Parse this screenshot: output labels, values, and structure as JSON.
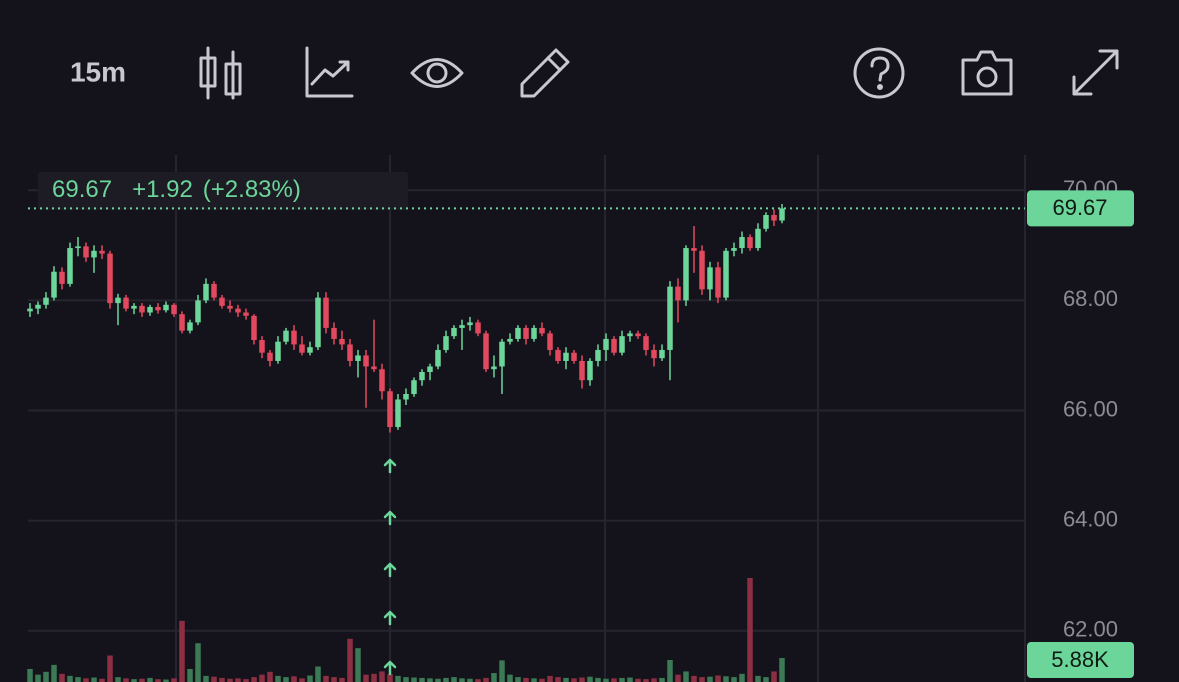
{
  "toolbar": {
    "interval": "15m"
  },
  "chart_data": {
    "type": "candlestick",
    "change": "+1.92",
    "change_pct": "(+2.83%)",
    "ylim": [
      61.07,
      70.64
    ],
    "yticks": [
      {
        "value": 62,
        "label": "62.00"
      },
      {
        "value": 64,
        "label": "64.00"
      },
      {
        "value": 66,
        "label": "66.00"
      },
      {
        "value": 68,
        "label": "68.00"
      },
      {
        "value": 70,
        "label": "70.00"
      }
    ],
    "grid": true,
    "up_color": "#6cd69a",
    "down_color": "#e2495f",
    "up_volume_color": "#3b7a55",
    "down_volume_color": "#8c2f42",
    "ohlc": [
      [
        67.8,
        67.95,
        67.7,
        67.85
      ],
      [
        67.85,
        67.98,
        67.75,
        67.92
      ],
      [
        67.92,
        68.15,
        67.85,
        68.05
      ],
      [
        68.05,
        68.62,
        68.0,
        68.52
      ],
      [
        68.52,
        68.6,
        68.2,
        68.3
      ],
      [
        68.3,
        69.05,
        68.25,
        68.95
      ],
      [
        68.95,
        69.15,
        68.8,
        68.98
      ],
      [
        68.98,
        69.05,
        68.7,
        68.78
      ],
      [
        68.78,
        69.0,
        68.5,
        68.9
      ],
      [
        68.9,
        69.0,
        68.75,
        68.85
      ],
      [
        68.85,
        68.9,
        67.85,
        67.95
      ],
      [
        67.95,
        68.12,
        67.55,
        68.05
      ],
      [
        68.05,
        68.1,
        67.8,
        67.85
      ],
      [
        67.85,
        67.95,
        67.75,
        67.9
      ],
      [
        67.9,
        67.95,
        67.7,
        67.78
      ],
      [
        67.78,
        67.92,
        67.72,
        67.88
      ],
      [
        67.88,
        67.95,
        67.76,
        67.82
      ],
      [
        67.82,
        67.98,
        67.78,
        67.92
      ],
      [
        67.92,
        67.95,
        67.7,
        67.75
      ],
      [
        67.75,
        67.8,
        67.4,
        67.45
      ],
      [
        67.45,
        67.65,
        67.4,
        67.6
      ],
      [
        67.6,
        68.1,
        67.55,
        68.0
      ],
      [
        68.0,
        68.4,
        67.95,
        68.3
      ],
      [
        68.3,
        68.35,
        68.0,
        68.05
      ],
      [
        68.05,
        68.1,
        67.85,
        67.9
      ],
      [
        67.9,
        68.0,
        67.78,
        67.85
      ],
      [
        67.85,
        67.92,
        67.7,
        67.78
      ],
      [
        67.78,
        67.85,
        67.65,
        67.72
      ],
      [
        67.72,
        67.75,
        67.2,
        67.28
      ],
      [
        67.28,
        67.35,
        66.95,
        67.05
      ],
      [
        67.05,
        67.1,
        66.8,
        66.9
      ],
      [
        66.9,
        67.35,
        66.85,
        67.25
      ],
      [
        67.25,
        67.5,
        67.2,
        67.45
      ],
      [
        67.45,
        67.55,
        67.1,
        67.2
      ],
      [
        67.2,
        67.35,
        67.0,
        67.05
      ],
      [
        67.05,
        67.25,
        67.0,
        67.15
      ],
      [
        67.15,
        68.15,
        67.1,
        68.05
      ],
      [
        68.05,
        68.15,
        67.4,
        67.5
      ],
      [
        67.5,
        67.6,
        67.2,
        67.3
      ],
      [
        67.3,
        67.45,
        67.1,
        67.2
      ],
      [
        67.2,
        67.3,
        66.8,
        66.9
      ],
      [
        66.9,
        67.1,
        66.6,
        67.0
      ],
      [
        67.0,
        67.1,
        66.05,
        66.8
      ],
      [
        66.8,
        67.65,
        66.7,
        66.75
      ],
      [
        66.75,
        66.85,
        66.2,
        66.35
      ],
      [
        66.35,
        66.4,
        65.6,
        65.7
      ],
      [
        65.7,
        66.3,
        65.65,
        66.2
      ],
      [
        66.2,
        66.4,
        66.1,
        66.3
      ],
      [
        66.3,
        66.6,
        66.25,
        66.55
      ],
      [
        66.55,
        66.75,
        66.45,
        66.7
      ],
      [
        66.7,
        66.85,
        66.55,
        66.8
      ],
      [
        66.8,
        67.2,
        66.75,
        67.1
      ],
      [
        67.1,
        67.45,
        67.05,
        67.35
      ],
      [
        67.35,
        67.55,
        67.3,
        67.5
      ],
      [
        67.5,
        67.65,
        67.1,
        67.55
      ],
      [
        67.55,
        67.7,
        67.45,
        67.6
      ],
      [
        67.6,
        67.65,
        67.35,
        67.4
      ],
      [
        67.4,
        67.45,
        66.7,
        66.75
      ],
      [
        66.75,
        67.0,
        66.6,
        66.8
      ],
      [
        66.8,
        67.3,
        66.3,
        67.25
      ],
      [
        67.25,
        67.4,
        67.2,
        67.3
      ],
      [
        67.3,
        67.55,
        67.25,
        67.5
      ],
      [
        67.5,
        67.55,
        67.2,
        67.3
      ],
      [
        67.3,
        67.55,
        67.25,
        67.5
      ],
      [
        67.5,
        67.6,
        67.35,
        67.4
      ],
      [
        67.4,
        67.45,
        67.0,
        67.1
      ],
      [
        67.1,
        67.15,
        66.85,
        66.9
      ],
      [
        66.9,
        67.15,
        66.75,
        67.05
      ],
      [
        67.05,
        67.1,
        66.85,
        66.9
      ],
      [
        66.9,
        67.0,
        66.4,
        66.55
      ],
      [
        66.55,
        66.95,
        66.45,
        66.9
      ],
      [
        66.9,
        67.2,
        66.8,
        67.1
      ],
      [
        67.1,
        67.4,
        66.9,
        67.3
      ],
      [
        67.3,
        67.35,
        67.0,
        67.05
      ],
      [
        67.05,
        67.45,
        67.0,
        67.35
      ],
      [
        67.35,
        67.45,
        67.25,
        67.4
      ],
      [
        67.4,
        67.45,
        67.3,
        67.35
      ],
      [
        67.35,
        67.4,
        67.0,
        67.1
      ],
      [
        67.1,
        67.2,
        66.8,
        66.95
      ],
      [
        66.95,
        67.2,
        66.9,
        67.1
      ],
      [
        67.1,
        68.35,
        66.55,
        68.25
      ],
      [
        68.25,
        68.4,
        67.6,
        68.0
      ],
      [
        68.0,
        69.0,
        67.9,
        68.95
      ],
      [
        68.95,
        69.35,
        68.5,
        68.9
      ],
      [
        68.9,
        69.0,
        68.1,
        68.2
      ],
      [
        68.2,
        68.7,
        68.0,
        68.6
      ],
      [
        68.6,
        68.7,
        67.95,
        68.05
      ],
      [
        68.05,
        68.95,
        68.0,
        68.9
      ],
      [
        68.9,
        69.05,
        68.8,
        68.95
      ],
      [
        68.95,
        69.25,
        68.85,
        69.15
      ],
      [
        69.15,
        69.2,
        68.9,
        68.95
      ],
      [
        68.95,
        69.4,
        68.9,
        69.3
      ],
      [
        69.3,
        69.6,
        69.25,
        69.55
      ],
      [
        69.55,
        69.65,
        69.35,
        69.45
      ],
      [
        69.45,
        69.75,
        69.4,
        69.67
      ]
    ],
    "volume": [
      3200,
      1800,
      2500,
      4200,
      2000,
      1500,
      1200,
      900,
      1100,
      800,
      6500,
      1200,
      900,
      700,
      800,
      1000,
      700,
      600,
      900,
      15000,
      3200,
      9500,
      1500,
      1300,
      1000,
      800,
      900,
      700,
      1200,
      1800,
      2500,
      1500,
      1200,
      1400,
      900,
      1600,
      3800,
      1500,
      1200,
      1000,
      10600,
      8300,
      1800,
      2000,
      2600,
      1900,
      1500,
      1200,
      1100,
      1000,
      900,
      800,
      1000,
      1200,
      900,
      800,
      700,
      1000,
      2200,
      5300,
      1800,
      1200,
      1000,
      900,
      800,
      1500,
      1200,
      1000,
      900,
      1100,
      1300,
      1000,
      800,
      900,
      1000,
      1100,
      800,
      700,
      900,
      1000,
      5400,
      1800,
      2600,
      1500,
      1200,
      1300,
      1600,
      1400,
      1200,
      2000,
      25500,
      1500,
      1200,
      2600,
      5880
    ],
    "last_volume_label": "5.88K"
  }
}
